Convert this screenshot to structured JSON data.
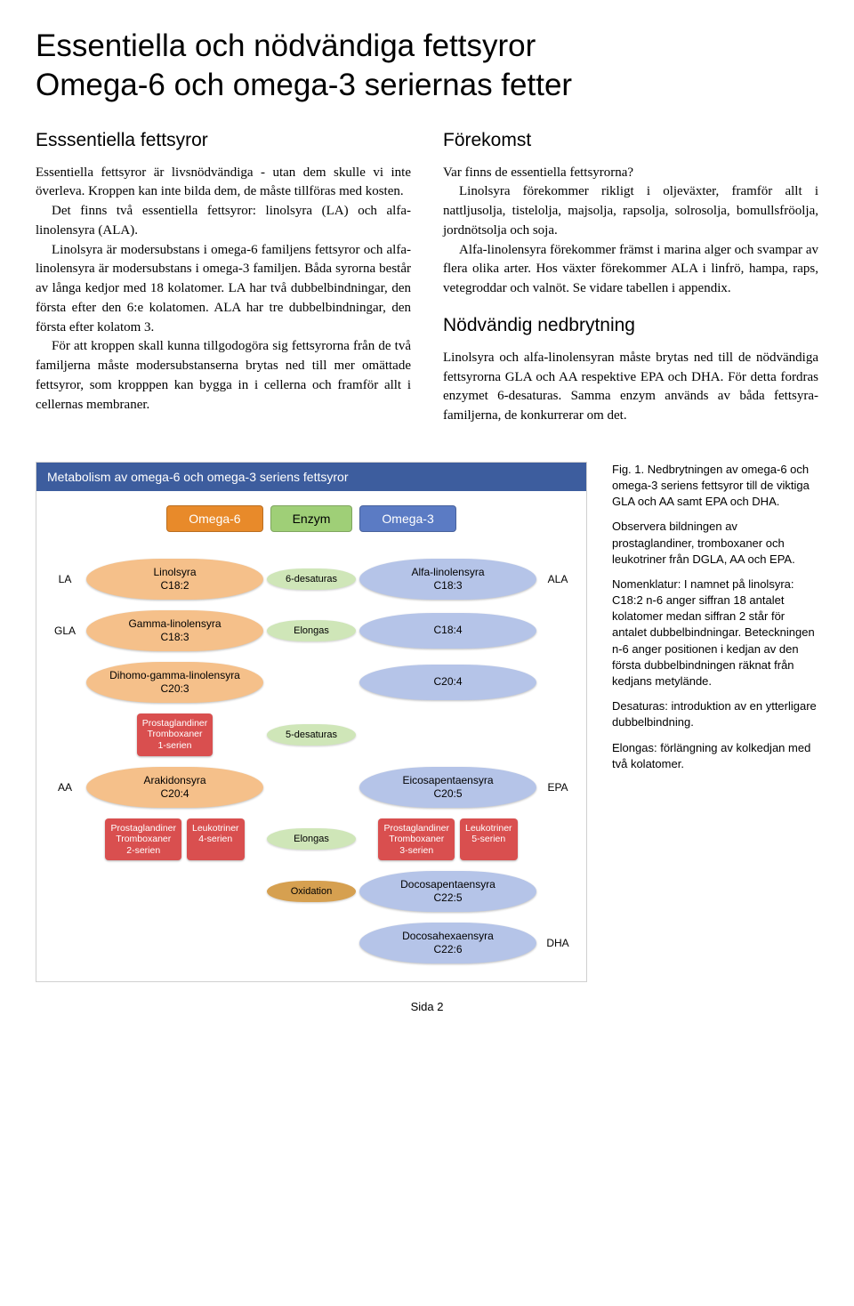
{
  "title_line1": "Essentiella och nödvändiga fettsyror",
  "title_line2": "Omega-6 och omega-3 seriernas fetter",
  "left_col": {
    "heading": "Esssentiella fettsyror",
    "p1": "Essentiella fettsyror är livsnödvändiga - utan dem skulle vi inte överleva. Kroppen kan inte bilda dem, de måste tillföras med kosten.",
    "p2": "Det finns två essentiella fettsyror: linolsyra (LA) och alfa-linolensyra (ALA).",
    "p3": "Linolsyra är modersubstans i omega-6 familjens fettsyror och alfa-linolensyra är modersubstans i omega-3 familjen. Båda syrorna består av långa kedjor med 18 kolatomer. LA har två dubbelbindningar, den första efter den 6:e kolatomen. ALA har tre dubbelbindningar, den första efter kolatom 3.",
    "p4": "För att kroppen skall kunna tillgodogöra sig fettsyrorna från de två familjerna måste modersubstanserna brytas ned till mer omättade fettsyror, som kropppen kan bygga in i cellerna och framför allt i cellernas membraner."
  },
  "right_col": {
    "heading_f": "Förekomst",
    "p_f1": "Var finns de essentiella fettsyrorna?",
    "p_f2": "Linolsyra förekommer rikligt i oljeväxter, framför allt i nattljusolja, tistelolja, majsolja, rapsolja, solrosolja, bomullsfröolja, jordnötsolja och soja.",
    "p_f3": "Alfa-linolensyra förekommer främst i marina alger och svampar av flera olika arter. Hos växter förekommer ALA i linfrö, hampa, raps, vetegroddar och valnöt. Se vidare tabellen i appendix.",
    "heading_n": "Nödvändig nedbrytning",
    "p_n1": "Linolsyra och alfa-linolensyran måste brytas ned till de nödvändiga fettsyrorna GLA och AA respektive EPA och DHA. För detta fordras enzymet 6-desaturas. Samma enzym används av båda fettsyra-familjerna, de konkurrerar om det."
  },
  "diagram": {
    "title": "Metabolism av omega-6 och omega-3 seriens fettsyror",
    "colors": {
      "omega6": "#e88a2a",
      "omega6_pale": "#f5c08a",
      "omega3": "#5b7bc4",
      "omega3_pale": "#b5c4e8",
      "enzyme": "#9fcf77",
      "enzyme_pale": "#cfe6b8",
      "prod": "#d94f4f",
      "oxidation": "#d6a050"
    },
    "legend": {
      "omega6": "Omega-6",
      "enzyme": "Enzym",
      "omega3": "Omega-3"
    },
    "rows": [
      {
        "left_abbr": "LA",
        "left_name": "Linolsyra",
        "left_code": "C18:2",
        "enzyme": "6-desaturas",
        "right_name": "Alfa-linolensyra",
        "right_code": "C18:3",
        "right_abbr": "ALA"
      },
      {
        "left_abbr": "GLA",
        "left_name": "Gamma-linolensyra",
        "left_code": "C18:3",
        "enzyme": "Elongas",
        "right_name": "",
        "right_code": "C18:4",
        "right_abbr": ""
      },
      {
        "left_abbr": "",
        "left_name": "Dihomo-gamma-linolensyra",
        "left_code": "C20:3",
        "enzyme": "",
        "right_name": "",
        "right_code": "C20:4",
        "right_abbr": ""
      },
      {
        "left_abbr": "AA",
        "left_name": "Arakidonsyra",
        "left_code": "C20:4",
        "enzyme": "5-desaturas",
        "right_name": "Eicosapentaensyra",
        "right_code": "C20:5",
        "right_abbr": "EPA"
      },
      {
        "left_abbr": "",
        "left_name": "",
        "left_code": "",
        "enzyme": "Elongas",
        "right_name": "Docosapentaensyra",
        "right_code": "C22:5",
        "right_abbr": ""
      },
      {
        "left_abbr": "",
        "left_name": "",
        "left_code": "",
        "enzyme": "Oxidation",
        "right_name": "Docosahexaensyra",
        "right_code": "C22:6",
        "right_abbr": "DHA"
      }
    ],
    "products": {
      "p1": "Prostaglandiner Tromboxaner 1-serien",
      "p2a": "Prostaglandiner Tromboxaner 2-serien",
      "p2b": "Leukotriner 4-serien",
      "p3a": "Prostaglandiner Tromboxaner 3-serien",
      "p3b": "Leukotriner 5-serien"
    }
  },
  "caption": {
    "p1": "Fig. 1. Nedbrytningen av omega-6 och omega-3 seriens fettsyror till de viktiga GLA och AA samt EPA och DHA.",
    "p2": "Observera bildningen av prostaglandiner, tromboxaner och leukotriner från DGLA, AA och EPA.",
    "p3": "Nomenklatur: I namnet på linolsyra: C18:2 n-6 anger siffran 18 antalet kolatomer medan siffran 2 står för antalet dubbelbindningar. Beteckningen n-6 anger positionen i kedjan av den första dubbelbindningen räknat från kedjans metylände.",
    "p4": "Desaturas: introduktion av en ytterligare dubbelbindning.",
    "p5": "Elongas: förlängning av kolkedjan med två kolatomer."
  },
  "page_number": "Sida 2"
}
